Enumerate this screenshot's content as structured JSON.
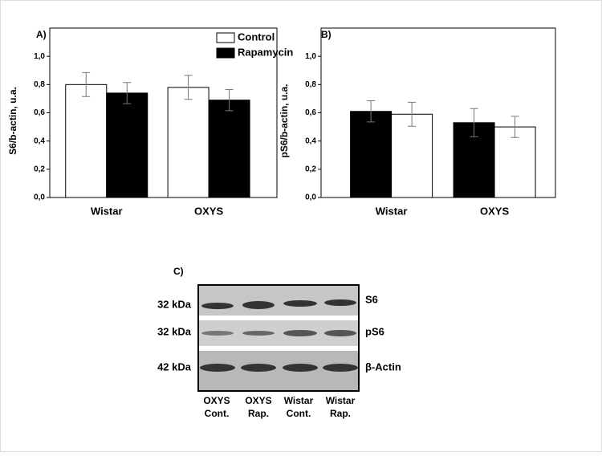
{
  "chart_data": [
    {
      "type": "bar",
      "panel": "A)",
      "y_label": "S6/b-actin, u.a.",
      "categories": [
        "Wistar",
        "OXYS"
      ],
      "series": [
        {
          "name": "Control",
          "color": "#ffffff",
          "values": [
            0.8,
            0.78
          ],
          "errors": [
            0.085,
            0.085
          ]
        },
        {
          "name": "Rapamycin",
          "color": "#000000",
          "values": [
            0.74,
            0.69
          ],
          "errors": [
            0.075,
            0.075
          ]
        }
      ],
      "ylim": [
        0,
        1.2
      ],
      "yticks": [
        {
          "value": 0,
          "label": "0,0"
        },
        {
          "value": 0.2,
          "label": "0,2"
        },
        {
          "value": 0.4,
          "label": "0,4"
        },
        {
          "value": 0.6,
          "label": "0,6"
        },
        {
          "value": 0.8,
          "label": "0,8"
        },
        {
          "value": 1.0,
          "label": "1,0"
        }
      ],
      "legend": "top-right"
    },
    {
      "type": "bar",
      "panel": "B)",
      "y_label": "pS6/b-actin, u.a.",
      "categories": [
        "Wistar",
        "OXYS"
      ],
      "series": [
        {
          "color": "#000000",
          "values": [
            0.61,
            0.53
          ],
          "errors": [
            0.075,
            0.1
          ]
        },
        {
          "color": "#ffffff",
          "values": [
            0.59,
            0.5
          ],
          "errors": [
            0.085,
            0.075
          ]
        }
      ],
      "ylim": [
        0,
        1.2
      ],
      "yticks": [
        {
          "value": 0,
          "label": "0,0"
        },
        {
          "value": 0.2,
          "label": "0,2"
        },
        {
          "value": 0.4,
          "label": "0,4"
        },
        {
          "value": 0.6,
          "label": "0,6"
        },
        {
          "value": 0.8,
          "label": "0,8"
        },
        {
          "value": 1.0,
          "label": "1,0"
        }
      ]
    }
  ],
  "blot": {
    "panel": "C)",
    "weights": [
      "32 kDa",
      "32 kDa",
      "42 kDa"
    ],
    "proteins": [
      "S6",
      "pS6",
      "β-Actin"
    ],
    "lanes": [
      [
        "OXYS",
        "Cont."
      ],
      [
        "OXYS",
        "Rap."
      ],
      [
        "Wistar",
        "Cont."
      ],
      [
        "Wistar",
        "Rap."
      ]
    ]
  }
}
